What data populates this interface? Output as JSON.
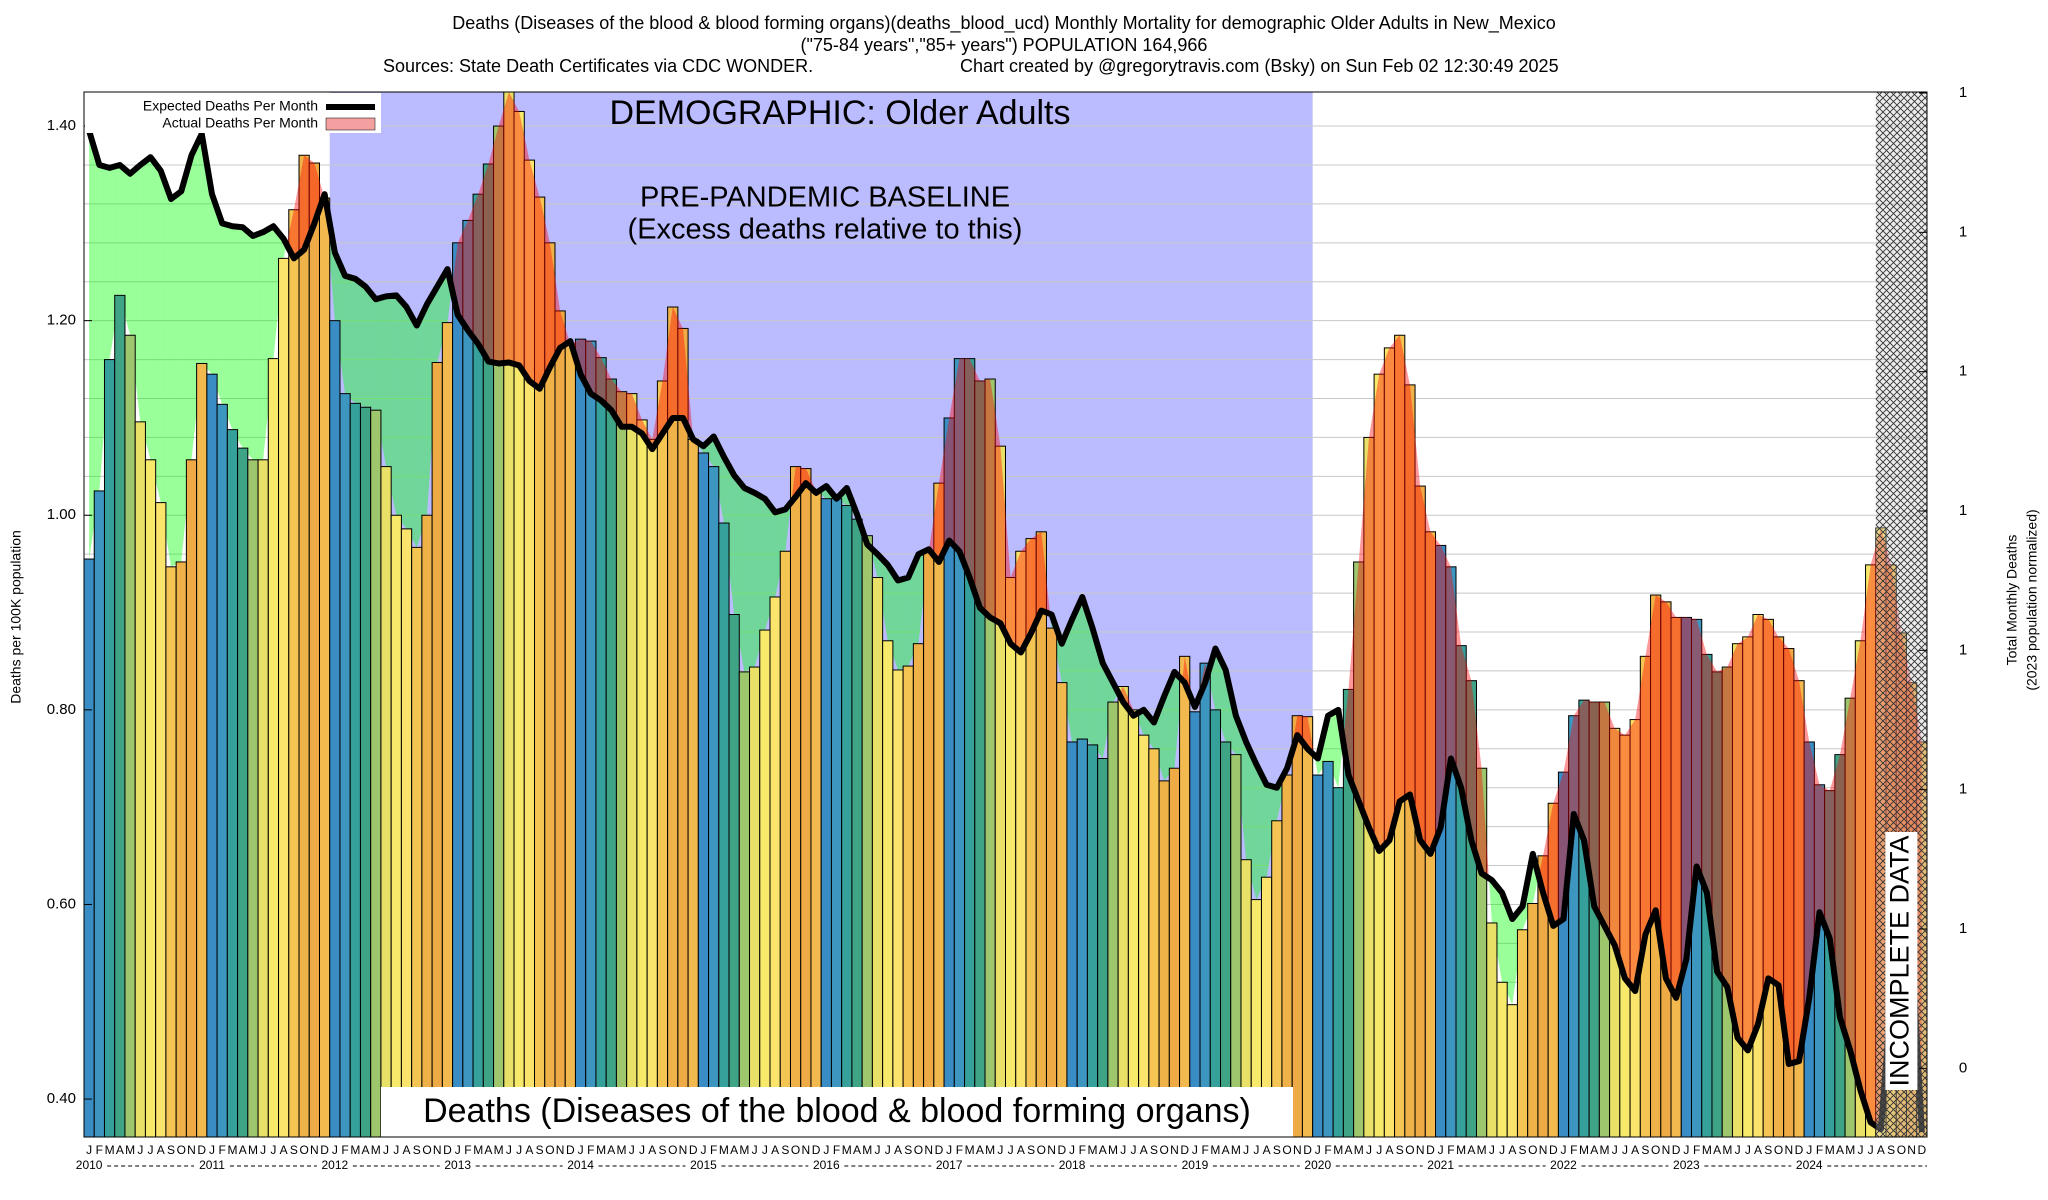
{
  "chart_data": {
    "type": "bar",
    "title": "Deaths (Diseases of the blood & blood forming organs)(deaths_blood_ucd) Monthly Mortality for demographic Older Adults in New_Mexico",
    "subtitle": "(\"75-84 years\",\"85+ years\") POPULATION 164,966",
    "source": "Sources: State Death Certificates via CDC WONDER.",
    "credit": "Chart created by @gregorytravis.com (Bsky) on Sun Feb 02 12:30:49 2025",
    "demographic_label": "DEMOGRAPHIC: Older Adults",
    "baseline_title": "PRE-PANDEMIC BASELINE",
    "baseline_subtitle": "(Excess deaths relative to this)",
    "baseline_years": [
      "2012",
      "2020"
    ],
    "cause_label": "Deaths (Diseases of the blood & blood forming organs)",
    "incomplete_label": "INCOMPLETE DATA",
    "incomplete_months": 5,
    "ylabel": "Deaths per 100K population",
    "y2label": [
      "Total Monthly Deaths",
      "(2023 population normalized)"
    ],
    "categories": [
      "J",
      "F",
      "M",
      "A",
      "M",
      "J",
      "J",
      "A",
      "S",
      "O",
      "N",
      "D",
      "J",
      "F",
      "M",
      "A",
      "M",
      "J",
      "J",
      "A",
      "S",
      "O",
      "N",
      "D",
      "J",
      "F",
      "M",
      "A",
      "M",
      "J",
      "J",
      "A",
      "S",
      "O",
      "N",
      "D",
      "J",
      "F",
      "M",
      "A",
      "M",
      "J",
      "J",
      "A",
      "S",
      "O",
      "N",
      "D",
      "J",
      "F",
      "M",
      "A",
      "M",
      "J",
      "J",
      "A",
      "S",
      "O",
      "N",
      "D",
      "J",
      "F",
      "M",
      "A",
      "M",
      "J",
      "J",
      "A",
      "S",
      "O",
      "N",
      "D",
      "J",
      "F",
      "M",
      "A",
      "M",
      "J",
      "J",
      "A",
      "S",
      "O",
      "N",
      "D",
      "J",
      "F",
      "M",
      "A",
      "M",
      "J",
      "J",
      "A",
      "S",
      "O",
      "N",
      "D",
      "J",
      "F",
      "M",
      "A",
      "M",
      "J",
      "J",
      "A",
      "S",
      "O",
      "N",
      "D",
      "J",
      "F",
      "M",
      "A",
      "M",
      "J",
      "J",
      "A",
      "S",
      "O",
      "N",
      "D",
      "J",
      "F",
      "M",
      "A",
      "M",
      "J",
      "J",
      "A",
      "S",
      "O",
      "N",
      "D",
      "J",
      "F",
      "M",
      "A",
      "M",
      "J",
      "J",
      "A",
      "S",
      "O",
      "N",
      "D",
      "J",
      "F",
      "M",
      "A",
      "M",
      "J",
      "J",
      "A",
      "S",
      "O",
      "N",
      "D",
      "J",
      "F",
      "M",
      "A",
      "M",
      "J",
      "J",
      "A",
      "S",
      "O",
      "N",
      "D",
      "J",
      "F",
      "M",
      "A",
      "M",
      "J",
      "J",
      "A",
      "S",
      "O",
      "N",
      "D"
    ],
    "year_labels": [
      "2010",
      "2011",
      "2012",
      "2013",
      "2014",
      "2015",
      "2016",
      "2017",
      "2018",
      "2019",
      "2020",
      "2021",
      "2022",
      "2023",
      "2024"
    ],
    "month_colors": [
      "#3a8cc4",
      "#3d96bf",
      "#36a09a",
      "#3fa386",
      "#9ec66d",
      "#e8e067",
      "#f7e96a",
      "#fbe46c",
      "#f4c552",
      "#efb248",
      "#eeaa44",
      "#f2b94e"
    ],
    "series": [
      {
        "name": "Expected Deaths Per Month",
        "color": "#000000",
        "values": [
          1.395,
          1.36,
          1.357,
          1.36,
          1.351,
          1.36,
          1.368,
          1.354,
          1.325,
          1.333,
          1.37,
          1.392,
          1.33,
          1.3,
          1.297,
          1.296,
          1.287,
          1.291,
          1.297,
          1.284,
          1.264,
          1.273,
          1.3,
          1.33,
          1.27,
          1.246,
          1.243,
          1.235,
          1.222,
          1.225,
          1.226,
          1.214,
          1.195,
          1.217,
          1.235,
          1.253,
          1.206,
          1.19,
          1.176,
          1.158,
          1.156,
          1.157,
          1.154,
          1.138,
          1.13,
          1.152,
          1.172,
          1.179,
          1.145,
          1.125,
          1.118,
          1.108,
          1.091,
          1.091,
          1.084,
          1.068,
          1.084,
          1.1,
          1.1,
          1.078,
          1.071,
          1.081,
          1.06,
          1.041,
          1.028,
          1.023,
          1.017,
          1.003,
          1.006,
          1.019,
          1.033,
          1.023,
          1.03,
          1.017,
          1.028,
          1.001,
          0.97,
          0.96,
          0.949,
          0.933,
          0.936,
          0.96,
          0.965,
          0.952,
          0.974,
          0.963,
          0.936,
          0.905,
          0.895,
          0.889,
          0.868,
          0.859,
          0.879,
          0.902,
          0.898,
          0.868,
          0.893,
          0.916,
          0.884,
          0.848,
          0.828,
          0.808,
          0.794,
          0.8,
          0.787,
          0.814,
          0.839,
          0.828,
          0.803,
          0.828,
          0.863,
          0.841,
          0.794,
          0.767,
          0.744,
          0.723,
          0.72,
          0.74,
          0.774,
          0.76,
          0.75,
          0.794,
          0.8,
          0.733,
          0.706,
          0.679,
          0.655,
          0.666,
          0.706,
          0.713,
          0.666,
          0.652,
          0.679,
          0.75,
          0.72,
          0.666,
          0.632,
          0.625,
          0.612,
          0.585,
          0.598,
          0.652,
          0.612,
          0.578,
          0.585,
          0.693,
          0.666,
          0.598,
          0.578,
          0.558,
          0.524,
          0.511,
          0.569,
          0.594,
          0.524,
          0.504,
          0.544,
          0.639,
          0.612,
          0.531,
          0.515,
          0.463,
          0.45,
          0.477,
          0.524,
          0.517,
          0.436,
          0.439,
          0.504,
          0.592,
          0.565,
          0.484,
          0.45,
          0.409,
          0.376,
          0.369,
          0.504,
          0.578,
          0.558,
          0.366
        ]
      },
      {
        "name": "Actual Deaths Per Month",
        "color": "#f4a0a0",
        "values": [
          0.955,
          1.025,
          1.16,
          1.226,
          1.185,
          1.096,
          1.057,
          1.013,
          0.947,
          0.952,
          1.057,
          1.156,
          1.145,
          1.114,
          1.088,
          1.069,
          1.057,
          1.057,
          1.161,
          1.264,
          1.314,
          1.37,
          1.362,
          1.326,
          1.2,
          1.125,
          1.115,
          1.111,
          1.108,
          1.05,
          1.0,
          0.986,
          0.967,
          1.0,
          1.157,
          1.198,
          1.28,
          1.303,
          1.33,
          1.361,
          1.4,
          1.435,
          1.415,
          1.365,
          1.327,
          1.28,
          1.21,
          1.176,
          1.181,
          1.179,
          1.162,
          1.14,
          1.127,
          1.125,
          1.098,
          1.078,
          1.138,
          1.214,
          1.192,
          1.078,
          1.064,
          1.05,
          0.992,
          0.898,
          0.839,
          0.844,
          0.882,
          0.916,
          0.963,
          1.05,
          1.048,
          1.025,
          1.017,
          1.017,
          1.01,
          0.996,
          0.979,
          0.936,
          0.871,
          0.841,
          0.845,
          0.868,
          0.963,
          1.033,
          1.1,
          1.161,
          1.161,
          1.138,
          1.14,
          1.071,
          0.936,
          0.963,
          0.976,
          0.983,
          0.884,
          0.828,
          0.767,
          0.77,
          0.764,
          0.75,
          0.808,
          0.824,
          0.8,
          0.774,
          0.76,
          0.727,
          0.74,
          0.855,
          0.798,
          0.848,
          0.8,
          0.767,
          0.754,
          0.646,
          0.605,
          0.628,
          0.686,
          0.733,
          0.794,
          0.793,
          0.733,
          0.747,
          0.72,
          0.821,
          0.952,
          1.08,
          1.145,
          1.172,
          1.185,
          1.134,
          1.03,
          0.983,
          0.969,
          0.947,
          0.866,
          0.83,
          0.74,
          0.581,
          0.52,
          0.497,
          0.574,
          0.601,
          0.65,
          0.704,
          0.736,
          0.794,
          0.81,
          0.808,
          0.808,
          0.781,
          0.774,
          0.79,
          0.855,
          0.918,
          0.911,
          0.895,
          0.895,
          0.893,
          0.857,
          0.839,
          0.844,
          0.868,
          0.875,
          0.898,
          0.893,
          0.875,
          0.863,
          0.83,
          0.767,
          0.723,
          0.717,
          0.754,
          0.812,
          0.871,
          0.949,
          0.987,
          0.949,
          0.879,
          0.828,
          0.767
        ]
      }
    ],
    "excess_color": "#ff0000",
    "deficit_color": "#00ff00",
    "baseline_color": "#bbbbff",
    "ylim": [
      0.361,
      1.435
    ],
    "yticks": [
      {
        "value": 0.4,
        "label": "0.40"
      },
      {
        "value": 0.6,
        "label": "0.60"
      },
      {
        "value": 0.8,
        "label": "0.80"
      },
      {
        "value": 1.0,
        "label": "1.00"
      },
      {
        "value": 1.2,
        "label": "1.20"
      },
      {
        "value": 1.4,
        "label": "1.40"
      }
    ],
    "ygrid": [
      0.4,
      0.44,
      0.48,
      0.52,
      0.56,
      0.6,
      0.64,
      0.68,
      0.72,
      0.76,
      0.8,
      0.84,
      0.88,
      0.92,
      0.96,
      1.0,
      1.04,
      1.08,
      1.12,
      1.16,
      1.2,
      1.24,
      1.28,
      1.32,
      1.36,
      1.4
    ],
    "y2lim": [
      0.351,
      1.401
    ],
    "y2ticks": [
      {
        "value": 0.42,
        "label": "0"
      },
      {
        "value": 0.56,
        "label": "1"
      },
      {
        "value": 0.7,
        "label": "1"
      },
      {
        "value": 0.84,
        "label": "1"
      },
      {
        "value": 0.98,
        "label": "1"
      },
      {
        "value": 1.12,
        "label": "1"
      },
      {
        "value": 1.26,
        "label": "1"
      },
      {
        "value": 1.4,
        "label": "1"
      }
    ],
    "grid": true,
    "legend": "top-left"
  }
}
